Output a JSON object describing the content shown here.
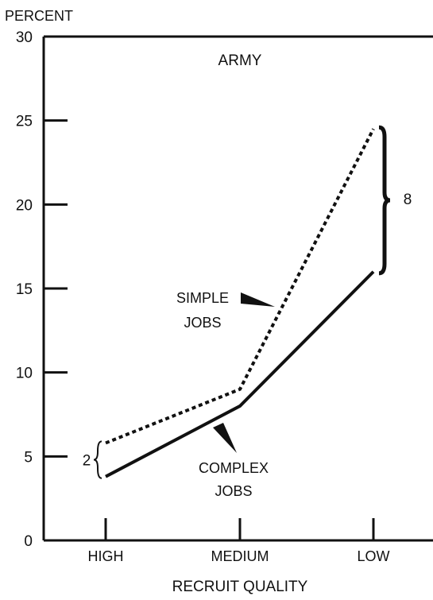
{
  "chart_data": {
    "type": "line",
    "title": "ARMY",
    "ylabel": "PERCENT",
    "xlabel": "RECRUIT QUALITY",
    "categories": [
      "HIGH",
      "MEDIUM",
      "LOW"
    ],
    "ylim": [
      0,
      30
    ],
    "yticks": [
      0,
      5,
      10,
      15,
      20,
      25,
      30
    ],
    "grid": false,
    "series": [
      {
        "name": "SIMPLE JOBS",
        "line1": "SIMPLE",
        "line2": "JOBS",
        "style": "dashed",
        "values": [
          5.8,
          9.0,
          24.5
        ]
      },
      {
        "name": "COMPLEX JOBS",
        "line1": "COMPLEX",
        "line2": "JOBS",
        "style": "solid",
        "values": [
          3.8,
          8.0,
          16.0
        ]
      }
    ],
    "annotations": [
      {
        "text": "2",
        "category": "HIGH"
      },
      {
        "text": "8",
        "category": "LOW"
      }
    ],
    "colors": {
      "ink": "#111111"
    }
  }
}
